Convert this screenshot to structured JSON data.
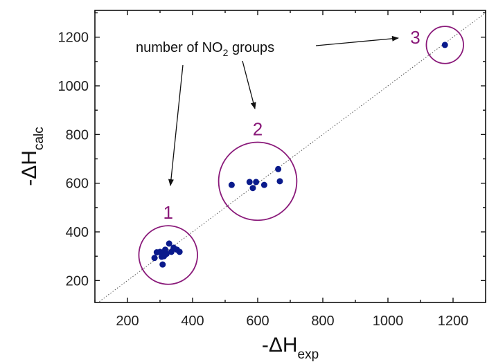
{
  "chart_data": {
    "type": "scatter",
    "xlabel": {
      "prefix": "-ΔH",
      "sub": "exp"
    },
    "ylabel": {
      "prefix": "-ΔH",
      "sub": "calc"
    },
    "xlim": [
      100,
      1300
    ],
    "ylim": [
      110,
      1310
    ],
    "x_ticks": [
      200,
      400,
      600,
      800,
      1000,
      1200
    ],
    "y_ticks": [
      200,
      400,
      600,
      800,
      1000,
      1200
    ],
    "grid": false,
    "identity_line": true,
    "points": [
      [
        283,
        293
      ],
      [
        290,
        316
      ],
      [
        300,
        318
      ],
      [
        305,
        298
      ],
      [
        310,
        313
      ],
      [
        312,
        300
      ],
      [
        316,
        327
      ],
      [
        320,
        310
      ],
      [
        328,
        352
      ],
      [
        335,
        318
      ],
      [
        342,
        335
      ],
      [
        352,
        327
      ],
      [
        360,
        318
      ],
      [
        308,
        266
      ],
      [
        520,
        593
      ],
      [
        575,
        605
      ],
      [
        585,
        580
      ],
      [
        595,
        605
      ],
      [
        620,
        593
      ],
      [
        663,
        658
      ],
      [
        668,
        608
      ],
      [
        1175,
        1168
      ]
    ],
    "clusters": [
      {
        "label": "1",
        "cx": 325,
        "cy": 305,
        "r": 90
      },
      {
        "label": "2",
        "cx": 600,
        "cy": 608,
        "r": 120
      },
      {
        "label": "3",
        "cx": 1175,
        "cy": 1168,
        "r": 57
      }
    ],
    "annotation": {
      "text_before": "number of NO",
      "text_sub": "2",
      "text_after": " groups"
    },
    "colors": {
      "points": "#0a1a8c",
      "circles": "#8a1a7a",
      "cluster_labels": "#8a1a7a",
      "identity_line": "#555555"
    }
  }
}
